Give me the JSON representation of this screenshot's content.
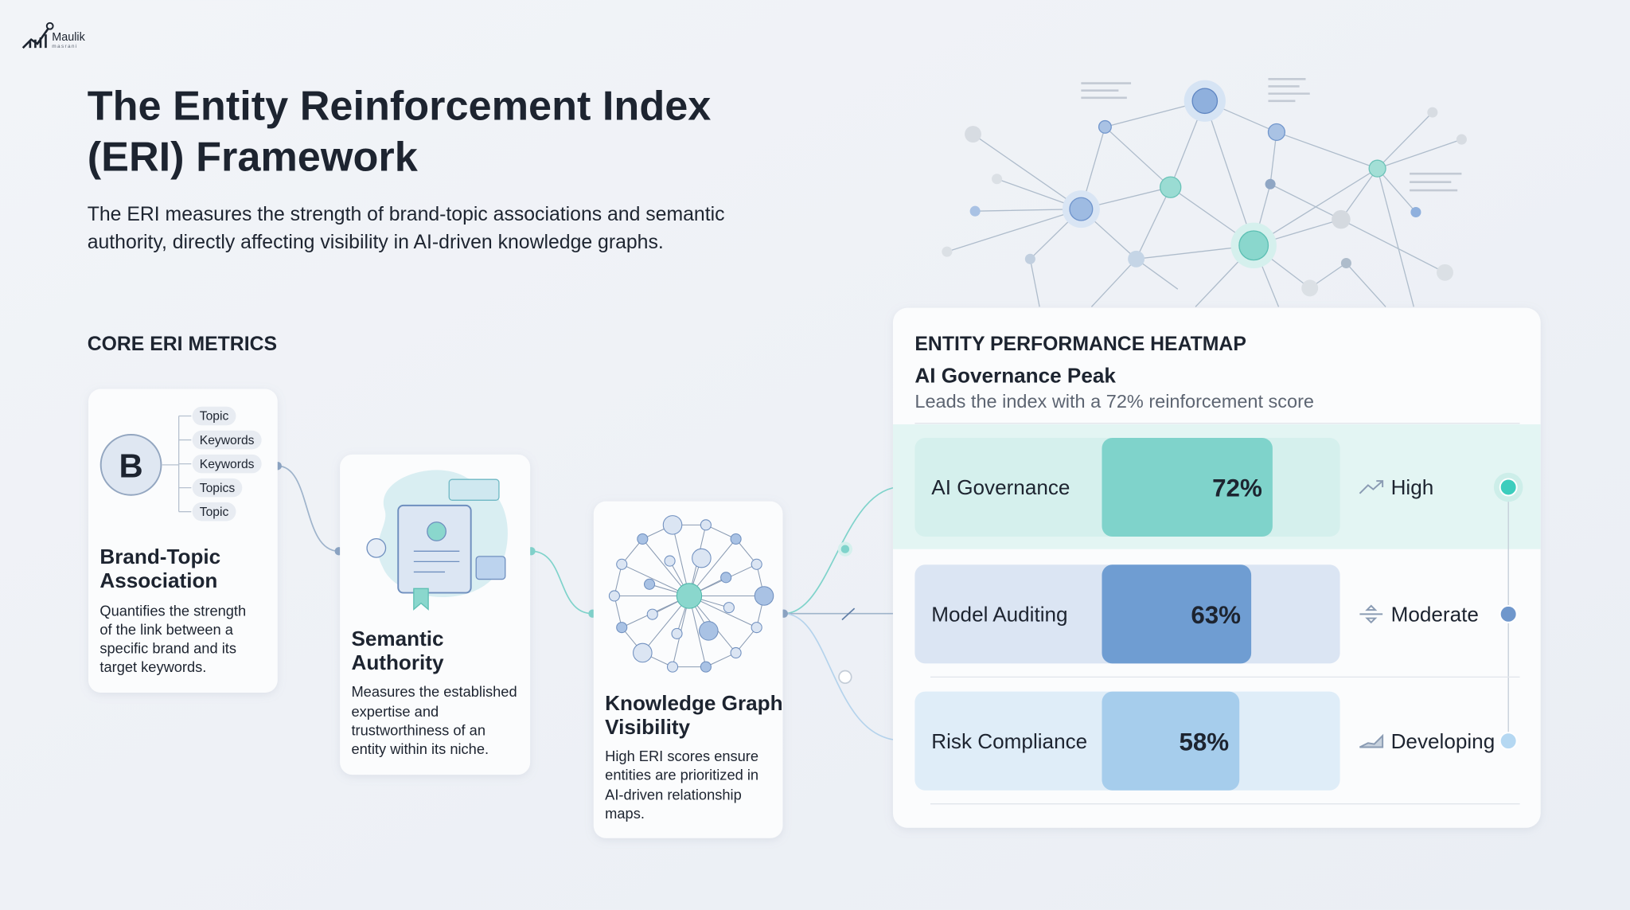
{
  "logo": {
    "name": "Maulik",
    "sub": "masrani"
  },
  "header": {
    "title_lines": [
      "The Entity Reinforcement Index",
      "(ERI) Framework"
    ],
    "description_lines": [
      "The ERI measures the strength of brand-topic associations and semantic",
      "authority, directly affecting visibility in AI-driven knowledge graphs."
    ]
  },
  "metrics": {
    "heading": "CORE ERI METRICS",
    "chips": [
      "Topic",
      "Keywords",
      "Keywords",
      "Topics",
      "Topic"
    ],
    "cards": [
      {
        "title_lines": [
          "Brand-Topic",
          "Association"
        ],
        "description_lines": [
          "Quantifies the strength",
          "of the link between a",
          "specific brand and its",
          "target keywords."
        ]
      },
      {
        "title_lines": [
          "Semantic",
          "Authority"
        ],
        "description_lines": [
          "Measures the established",
          "expertise and",
          "trustworthiness of an",
          "entity within its niche."
        ]
      },
      {
        "title_lines": [
          "Knowledge Graph",
          "Visibility"
        ],
        "description_lines": [
          "High ERI scores ensure",
          "entities are prioritized in",
          "AI-driven relationship",
          "maps."
        ]
      }
    ]
  },
  "heatmap": {
    "title": "ENTITY PERFORMANCE HEATMAP",
    "subtitle": "AI Governance Peak",
    "description": "Leads the index with a 72% reinforcement score",
    "rows": [
      {
        "label": "AI Governance",
        "value": 72,
        "value_label": "72%",
        "status": "High",
        "color": "#7fd3cb",
        "track": "#d5f0ed",
        "dot": "#3ccdbd"
      },
      {
        "label": "Model Auditing",
        "value": 63,
        "value_label": "63%",
        "status": "Moderate",
        "color": "#6f9dd2",
        "track": "#dbe5f3",
        "dot": "#6f97cc"
      },
      {
        "label": "Risk Compliance",
        "value": 58,
        "value_label": "58%",
        "status": "Developing",
        "color": "#a6cdec",
        "track": "#dfedf8",
        "dot": "#b5d8f2"
      }
    ]
  }
}
